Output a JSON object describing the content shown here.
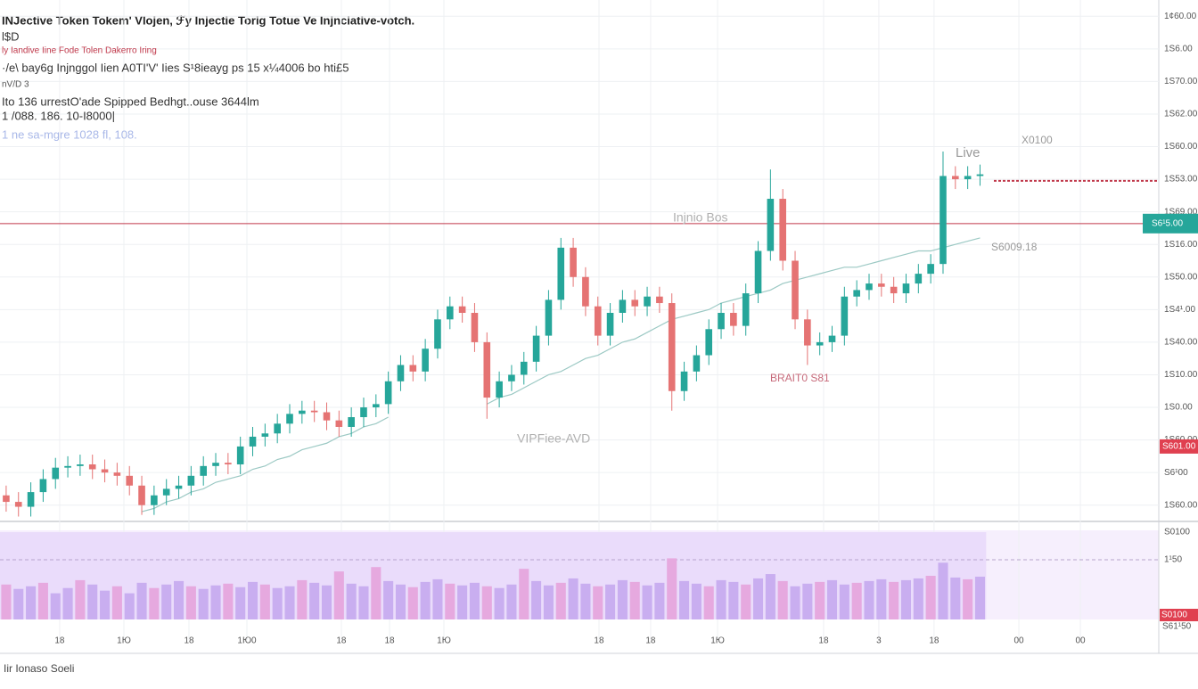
{
  "chart_data": {
    "type": "candlestick",
    "title": "INJective Token Tokem' Vlojen, ℱy Injectie Torig Totue Ve Injnciative-votch.",
    "header_lines": [
      {
        "text": "l$D",
        "color": "#333333"
      },
      {
        "text": "ly Iandive Iine Fode Tolen Dakerro Iring",
        "color": "#c0394b"
      },
      {
        "text": "·/e\\ bay6g Injnggol Iien A0TI'V' Iies S¹8ieayg ps 15 x¼4006 bo hti£5",
        "color": "#333333"
      },
      {
        "text": "nV/D 3",
        "color": "#555555"
      },
      {
        "text": "Ito 136 urrestO'ade Spipped Bedhgt..ouse 3644lm",
        "color": "#333333"
      },
      {
        "text": "1 /088. 186. 10-Ι8000|",
        "color": "#333333"
      },
      {
        "text": "1 ne sa-mgre 1028 fl, 108.",
        "color": "#a9b8e8"
      }
    ],
    "up_color": "#26a69a",
    "down_color": "#e57373",
    "open": [
      0.8,
      0.6,
      0.45,
      0.9,
      1.3,
      1.65,
      1.7,
      1.75,
      1.6,
      1.5,
      1.4,
      1.1,
      0.5,
      0.8,
      1.0,
      1.1,
      1.4,
      1.7,
      1.8,
      1.75,
      2.3,
      2.6,
      2.7,
      3.0,
      3.3,
      3.4,
      3.35,
      3.1,
      2.9,
      3.2,
      3.5,
      3.6,
      4.3,
      4.8,
      4.6,
      5.3,
      6.2,
      6.6,
      6.4,
      5.5,
      3.8,
      4.3,
      4.5,
      4.9,
      5.7,
      6.8,
      8.4,
      7.5,
      6.6,
      5.7,
      6.4,
      6.8,
      6.6,
      6.9,
      6.7,
      4.0,
      4.6,
      5.1,
      5.9,
      6.4,
      6.0,
      7.0,
      8.3,
      9.9,
      8.0,
      6.2,
      5.4,
      5.5,
      5.7,
      6.9,
      7.1,
      7.3,
      7.2,
      7.0,
      7.3,
      7.6,
      7.9,
      10.6,
      10.5,
      10.6
    ],
    "high": [
      1.1,
      0.9,
      1.2,
      1.6,
      1.95,
      2.0,
      2.05,
      2.05,
      1.9,
      1.8,
      1.7,
      1.4,
      1.1,
      1.3,
      1.4,
      1.7,
      2.0,
      2.1,
      2.1,
      2.6,
      2.9,
      3.0,
      3.3,
      3.6,
      3.7,
      3.7,
      3.65,
      3.4,
      3.5,
      3.8,
      3.9,
      4.6,
      5.1,
      5.1,
      5.6,
      6.5,
      6.9,
      6.9,
      6.7,
      5.8,
      4.6,
      4.8,
      5.2,
      6.0,
      7.1,
      8.7,
      8.7,
      7.8,
      6.9,
      6.7,
      7.1,
      7.1,
      7.2,
      7.2,
      7.0,
      4.9,
      5.4,
      6.2,
      6.7,
      6.7,
      7.3,
      8.6,
      10.8,
      10.2,
      8.3,
      6.5,
      5.8,
      6.0,
      7.2,
      7.4,
      7.6,
      7.6,
      7.5,
      7.6,
      7.9,
      8.2,
      11.35,
      10.9,
      10.9,
      10.95
    ],
    "low": [
      0.3,
      0.15,
      0.15,
      0.6,
      1.0,
      1.35,
      1.4,
      1.3,
      1.2,
      1.1,
      0.8,
      0.2,
      0.2,
      0.5,
      0.7,
      0.8,
      1.1,
      1.4,
      1.45,
      1.45,
      2.0,
      2.3,
      2.4,
      2.7,
      3.0,
      3.05,
      2.8,
      2.6,
      2.6,
      2.9,
      3.2,
      3.3,
      4.0,
      4.3,
      4.3,
      5.0,
      5.9,
      6.1,
      5.2,
      3.15,
      3.5,
      4.0,
      4.2,
      4.6,
      5.4,
      6.5,
      7.2,
      6.3,
      5.4,
      5.4,
      6.1,
      6.3,
      6.3,
      6.4,
      3.4,
      3.7,
      4.3,
      4.8,
      5.6,
      5.7,
      5.7,
      6.7,
      8.0,
      7.7,
      5.9,
      4.8,
      5.1,
      5.2,
      5.4,
      6.6,
      6.8,
      6.9,
      6.7,
      6.7,
      7.0,
      7.3,
      7.6,
      10.2,
      10.2,
      10.3
    ],
    "close": [
      0.6,
      0.45,
      0.9,
      1.3,
      1.65,
      1.7,
      1.75,
      1.6,
      1.5,
      1.4,
      1.1,
      0.5,
      0.8,
      1.0,
      1.1,
      1.4,
      1.7,
      1.8,
      1.75,
      2.3,
      2.6,
      2.7,
      3.0,
      3.3,
      3.4,
      3.35,
      3.1,
      2.9,
      3.2,
      3.5,
      3.6,
      4.3,
      4.8,
      4.6,
      5.3,
      6.2,
      6.6,
      6.4,
      5.5,
      3.8,
      4.3,
      4.5,
      4.9,
      5.7,
      6.8,
      8.4,
      7.5,
      6.6,
      5.7,
      6.4,
      6.8,
      6.6,
      6.9,
      6.7,
      4.0,
      4.6,
      5.1,
      5.9,
      6.4,
      6.0,
      7.0,
      8.3,
      9.9,
      8.0,
      6.2,
      5.4,
      5.5,
      5.7,
      6.9,
      7.1,
      7.3,
      7.2,
      7.0,
      7.3,
      7.6,
      7.9,
      10.6,
      10.5,
      10.6,
      10.65
    ],
    "moving_average": {
      "color": "#9cc9c4",
      "values": [
        null,
        null,
        null,
        null,
        null,
        null,
        null,
        null,
        null,
        null,
        null,
        0.3,
        0.4,
        0.6,
        0.7,
        0.9,
        1.0,
        1.2,
        1.3,
        1.4,
        1.6,
        1.7,
        1.9,
        2.0,
        2.2,
        2.3,
        2.4,
        2.6,
        2.7,
        2.9,
        3.0,
        3.2,
        null,
        null,
        null,
        null,
        null,
        null,
        null,
        3.6,
        3.8,
        3.9,
        4.1,
        4.3,
        4.5,
        4.6,
        4.8,
        5.0,
        5.1,
        5.3,
        5.5,
        5.6,
        5.8,
        6.0,
        6.2,
        6.3,
        6.4,
        6.5,
        6.7,
        6.8,
        6.9,
        7.0,
        7.1,
        7.3,
        7.4,
        7.5,
        7.6,
        7.7,
        7.8,
        7.8,
        7.9,
        8.0,
        8.1,
        8.2,
        8.3,
        8.3,
        8.4,
        8.5,
        8.6,
        8.7
      ]
    },
    "xlim": [
      0,
      94
    ],
    "xticks": [
      {
        "value": 4.84,
        "label": "18"
      },
      {
        "value": 10.05,
        "label": "1Ю"
      },
      {
        "value": 15.33,
        "label": "18"
      },
      {
        "value": 20.03,
        "label": "1Ю0"
      },
      {
        "value": 27.69,
        "label": "18"
      },
      {
        "value": 31.6,
        "label": "18"
      },
      {
        "value": 36.01,
        "label": "1Ю"
      },
      {
        "value": 48.59,
        "label": "18"
      },
      {
        "value": 52.78,
        "label": "18"
      },
      {
        "value": 58.21,
        "label": "1Ю"
      },
      {
        "value": 66.81,
        "label": "18"
      },
      {
        "value": 71.29,
        "label": "3"
      },
      {
        "value": 75.77,
        "label": "18"
      },
      {
        "value": 82.65,
        "label": "00"
      },
      {
        "value": 87.64,
        "label": "00"
      }
    ],
    "ylim": [
      0,
      16
    ],
    "yticks": [
      {
        "value": 15.5,
        "label": "1¢60.00"
      },
      {
        "value": 14.5,
        "label": "1S6.00"
      },
      {
        "value": 13.5,
        "label": "1S70.00"
      },
      {
        "value": 12.5,
        "label": "1S62.00"
      },
      {
        "value": 11.5,
        "label": "1S60.00"
      },
      {
        "value": 10.5,
        "label": "1S53.00"
      },
      {
        "value": 9.5,
        "label": "1S69.00"
      },
      {
        "value": 8.5,
        "label": "1S16.00"
      },
      {
        "value": 7.5,
        "label": "1S50.00"
      },
      {
        "value": 6.5,
        "label": "1S4¹.00"
      },
      {
        "value": 5.5,
        "label": "1S40.00"
      },
      {
        "value": 4.5,
        "label": "1S10.00"
      },
      {
        "value": 3.5,
        "label": "1S0.00"
      },
      {
        "value": 2.5,
        "label": "1S60.00"
      },
      {
        "value": 1.5,
        "label": "S6¹00"
      },
      {
        "value": 0.5,
        "label": "1S60.00"
      }
    ],
    "grid": true,
    "price_line": {
      "value": 9.14,
      "color": "#c0394b",
      "label": "S6¹5.00",
      "badge_color": "#26a69a"
    },
    "last_price_line": {
      "value": 10.45,
      "color": "#c0394b"
    },
    "low_badge": {
      "value": 2.3,
      "label": "S601.00",
      "color": "#e04050"
    },
    "annotations": [
      {
        "text": "Live",
        "color": "#999999"
      },
      {
        "text": "X0100",
        "color": "#999999"
      },
      {
        "text": "Injnio Bos",
        "color": "#b0b0b0"
      },
      {
        "text": "S6009.18",
        "color": "#9a9a9a"
      },
      {
        "text": "BRAIT0 S81",
        "color": "#c76a7a"
      },
      {
        "text": "VIPFiee-AVD",
        "color": "#b0b0b0"
      }
    ],
    "indicator": {
      "color": "#c9aef0",
      "ylim": [
        0,
        100
      ],
      "values": [
        40,
        35,
        38,
        42,
        30,
        36,
        45,
        40,
        33,
        38,
        30,
        42,
        36,
        40,
        44,
        38,
        35,
        39,
        41,
        37,
        43,
        40,
        36,
        38,
        45,
        42,
        39,
        55,
        41,
        38,
        60,
        44,
        40,
        37,
        43,
        46,
        41,
        39,
        42,
        38,
        36,
        40,
        58,
        44,
        39,
        42,
        47,
        41,
        38,
        40,
        45,
        43,
        39,
        42,
        70,
        44,
        41,
        38,
        45,
        43,
        40,
        47,
        52,
        44,
        38,
        41,
        43,
        45,
        40,
        42,
        44,
        46,
        43,
        45,
        47,
        50,
        65,
        48,
        46,
        49
      ],
      "labels": [
        "S0100",
        "1¹50",
        "S0100",
        "S61¹50"
      ]
    },
    "footer": "Iir Ionaso Soeli"
  }
}
